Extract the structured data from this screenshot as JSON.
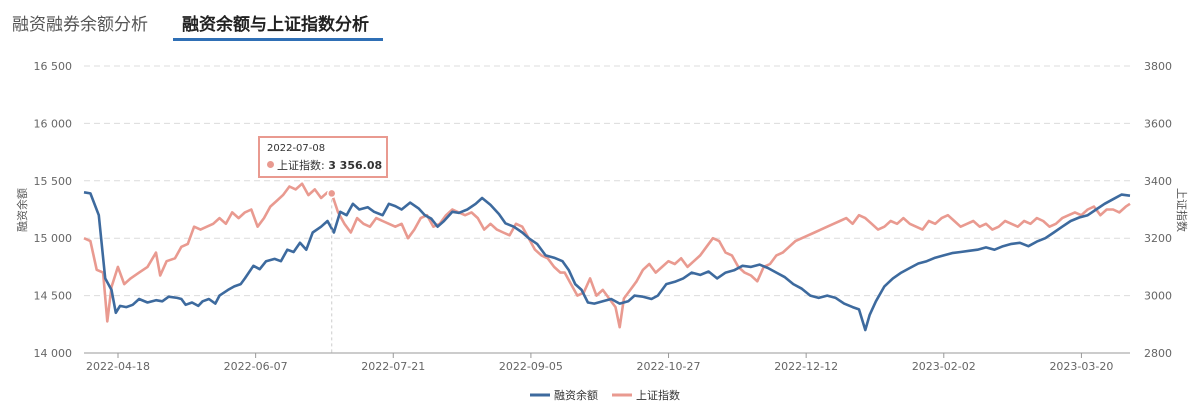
{
  "tabs": [
    {
      "label": "融资融券余额分析"
    },
    {
      "label": "融资余额与上证指数分析"
    }
  ],
  "chart_data": {
    "type": "line",
    "x_ticks": [
      "2022-04-18",
      "2022-06-07",
      "2022-07-21",
      "2022-09-05",
      "2022-10-27",
      "2022-12-12",
      "2023-02-02",
      "2023-03-20"
    ],
    "y_left": {
      "label": "融资余额",
      "ticks": [
        "14 000",
        "14 500",
        "15 000",
        "15 500",
        "16 000",
        "16 500"
      ],
      "range": [
        14000,
        16500
      ]
    },
    "y_right": {
      "label": "上证指数",
      "ticks": [
        "2800",
        "3000",
        "3200",
        "3400",
        "3600",
        "3800"
      ],
      "range": [
        2800,
        3800
      ]
    },
    "grid": true,
    "legend_position": "bottom-center",
    "series": [
      {
        "name": "融资余额",
        "axis": "left",
        "color": "#3d6a9e",
        "points": [
          [
            0,
            15400
          ],
          [
            3,
            15390
          ],
          [
            7,
            15200
          ],
          [
            10,
            14650
          ],
          [
            13,
            14550
          ],
          [
            15,
            14350
          ],
          [
            17,
            14410
          ],
          [
            20,
            14400
          ],
          [
            23,
            14420
          ],
          [
            26,
            14470
          ],
          [
            30,
            14440
          ],
          [
            34,
            14460
          ],
          [
            37,
            14450
          ],
          [
            40,
            14490
          ],
          [
            44,
            14480
          ],
          [
            46,
            14470
          ],
          [
            48,
            14420
          ],
          [
            51,
            14440
          ],
          [
            54,
            14410
          ],
          [
            56,
            14450
          ],
          [
            59,
            14470
          ],
          [
            62,
            14430
          ],
          [
            64,
            14500
          ],
          [
            68,
            14550
          ],
          [
            71,
            14580
          ],
          [
            74,
            14600
          ],
          [
            76,
            14650
          ],
          [
            80,
            14760
          ],
          [
            83,
            14730
          ],
          [
            86,
            14800
          ],
          [
            90,
            14820
          ],
          [
            93,
            14800
          ],
          [
            96,
            14900
          ],
          [
            99,
            14880
          ],
          [
            102,
            14960
          ],
          [
            105,
            14900
          ],
          [
            108,
            15050
          ],
          [
            112,
            15100
          ],
          [
            115,
            15150
          ],
          [
            118,
            15050
          ],
          [
            121,
            15230
          ],
          [
            124,
            15200
          ],
          [
            127,
            15300
          ],
          [
            130,
            15250
          ],
          [
            134,
            15270
          ],
          [
            137,
            15230
          ],
          [
            141,
            15200
          ],
          [
            144,
            15300
          ],
          [
            147,
            15280
          ],
          [
            150,
            15250
          ],
          [
            154,
            15310
          ],
          [
            158,
            15260
          ],
          [
            161,
            15200
          ],
          [
            164,
            15170
          ],
          [
            167,
            15100
          ],
          [
            170,
            15150
          ],
          [
            174,
            15230
          ],
          [
            177,
            15220
          ],
          [
            181,
            15250
          ],
          [
            185,
            15300
          ],
          [
            188,
            15350
          ],
          [
            192,
            15290
          ],
          [
            196,
            15210
          ],
          [
            199,
            15130
          ],
          [
            203,
            15100
          ],
          [
            207,
            15050
          ],
          [
            210,
            15000
          ],
          [
            214,
            14950
          ],
          [
            218,
            14850
          ],
          [
            222,
            14830
          ],
          [
            226,
            14800
          ],
          [
            229,
            14720
          ],
          [
            232,
            14600
          ],
          [
            235,
            14550
          ],
          [
            238,
            14440
          ],
          [
            241,
            14430
          ],
          [
            245,
            14450
          ],
          [
            249,
            14470
          ],
          [
            253,
            14430
          ],
          [
            257,
            14450
          ],
          [
            260,
            14500
          ],
          [
            264,
            14490
          ],
          [
            268,
            14470
          ],
          [
            271,
            14500
          ],
          [
            275,
            14600
          ],
          [
            279,
            14620
          ],
          [
            283,
            14650
          ],
          [
            287,
            14700
          ],
          [
            291,
            14680
          ],
          [
            295,
            14710
          ],
          [
            299,
            14650
          ],
          [
            303,
            14700
          ],
          [
            307,
            14720
          ],
          [
            311,
            14760
          ],
          [
            315,
            14750
          ],
          [
            319,
            14770
          ],
          [
            323,
            14740
          ],
          [
            327,
            14700
          ],
          [
            331,
            14660
          ],
          [
            335,
            14600
          ],
          [
            339,
            14560
          ],
          [
            343,
            14500
          ],
          [
            347,
            14480
          ],
          [
            351,
            14500
          ],
          [
            355,
            14480
          ],
          [
            359,
            14430
          ],
          [
            363,
            14400
          ],
          [
            366,
            14380
          ],
          [
            369,
            14200
          ],
          [
            371,
            14330
          ],
          [
            374,
            14450
          ],
          [
            378,
            14580
          ],
          [
            382,
            14650
          ],
          [
            386,
            14700
          ],
          [
            390,
            14740
          ],
          [
            394,
            14780
          ],
          [
            398,
            14800
          ],
          [
            402,
            14830
          ],
          [
            406,
            14850
          ],
          [
            410,
            14870
          ],
          [
            414,
            14880
          ],
          [
            418,
            14890
          ],
          [
            422,
            14900
          ],
          [
            426,
            14920
          ],
          [
            430,
            14900
          ],
          [
            434,
            14930
          ],
          [
            438,
            14950
          ],
          [
            442,
            14960
          ],
          [
            446,
            14930
          ],
          [
            450,
            14970
          ],
          [
            454,
            15000
          ],
          [
            458,
            15050
          ],
          [
            462,
            15100
          ],
          [
            466,
            15150
          ],
          [
            470,
            15180
          ],
          [
            474,
            15200
          ],
          [
            478,
            15250
          ],
          [
            482,
            15300
          ],
          [
            486,
            15340
          ],
          [
            490,
            15380
          ],
          [
            494,
            15370
          ]
        ]
      },
      {
        "name": "上证指数",
        "axis": "right",
        "color": "#e99a90",
        "points": [
          [
            0,
            3200
          ],
          [
            3,
            3190
          ],
          [
            6,
            3090
          ],
          [
            9,
            3080
          ],
          [
            11,
            2910
          ],
          [
            13,
            3030
          ],
          [
            16,
            3100
          ],
          [
            19,
            3040
          ],
          [
            22,
            3060
          ],
          [
            26,
            3080
          ],
          [
            30,
            3100
          ],
          [
            34,
            3150
          ],
          [
            36,
            3070
          ],
          [
            39,
            3120
          ],
          [
            43,
            3130
          ],
          [
            46,
            3170
          ],
          [
            49,
            3180
          ],
          [
            52,
            3240
          ],
          [
            55,
            3230
          ],
          [
            58,
            3240
          ],
          [
            61,
            3250
          ],
          [
            64,
            3270
          ],
          [
            67,
            3250
          ],
          [
            70,
            3290
          ],
          [
            73,
            3270
          ],
          [
            76,
            3290
          ],
          [
            79,
            3300
          ],
          [
            82,
            3240
          ],
          [
            85,
            3270
          ],
          [
            88,
            3310
          ],
          [
            91,
            3330
          ],
          [
            94,
            3350
          ],
          [
            97,
            3380
          ],
          [
            100,
            3370
          ],
          [
            103,
            3390
          ],
          [
            106,
            3350
          ],
          [
            109,
            3370
          ],
          [
            112,
            3340
          ],
          [
            115,
            3360
          ],
          [
            117,
            3356
          ],
          [
            120,
            3290
          ],
          [
            123,
            3250
          ],
          [
            126,
            3220
          ],
          [
            129,
            3270
          ],
          [
            132,
            3250
          ],
          [
            135,
            3240
          ],
          [
            138,
            3270
          ],
          [
            141,
            3260
          ],
          [
            144,
            3250
          ],
          [
            147,
            3240
          ],
          [
            150,
            3250
          ],
          [
            153,
            3200
          ],
          [
            156,
            3230
          ],
          [
            159,
            3270
          ],
          [
            162,
            3280
          ],
          [
            165,
            3240
          ],
          [
            168,
            3250
          ],
          [
            171,
            3280
          ],
          [
            174,
            3300
          ],
          [
            177,
            3290
          ],
          [
            180,
            3280
          ],
          [
            183,
            3290
          ],
          [
            186,
            3270
          ],
          [
            189,
            3230
          ],
          [
            192,
            3250
          ],
          [
            195,
            3230
          ],
          [
            198,
            3220
          ],
          [
            201,
            3210
          ],
          [
            204,
            3250
          ],
          [
            207,
            3240
          ],
          [
            210,
            3200
          ],
          [
            213,
            3160
          ],
          [
            216,
            3140
          ],
          [
            219,
            3130
          ],
          [
            222,
            3100
          ],
          [
            225,
            3080
          ],
          [
            227,
            3080
          ],
          [
            230,
            3040
          ],
          [
            233,
            3000
          ],
          [
            236,
            3010
          ],
          [
            239,
            3060
          ],
          [
            242,
            3000
          ],
          [
            245,
            3020
          ],
          [
            248,
            2990
          ],
          [
            251,
            2960
          ],
          [
            253,
            2890
          ],
          [
            255,
            2990
          ],
          [
            258,
            3020
          ],
          [
            261,
            3050
          ],
          [
            264,
            3090
          ],
          [
            267,
            3110
          ],
          [
            270,
            3080
          ],
          [
            273,
            3100
          ],
          [
            276,
            3120
          ],
          [
            279,
            3110
          ],
          [
            282,
            3130
          ],
          [
            285,
            3100
          ],
          [
            288,
            3120
          ],
          [
            291,
            3140
          ],
          [
            294,
            3170
          ],
          [
            297,
            3200
          ],
          [
            300,
            3190
          ],
          [
            303,
            3150
          ],
          [
            306,
            3140
          ],
          [
            309,
            3100
          ],
          [
            312,
            3080
          ],
          [
            315,
            3070
          ],
          [
            318,
            3050
          ],
          [
            321,
            3100
          ],
          [
            324,
            3110
          ],
          [
            327,
            3140
          ],
          [
            330,
            3150
          ],
          [
            333,
            3170
          ],
          [
            336,
            3190
          ],
          [
            339,
            3200
          ],
          [
            342,
            3210
          ],
          [
            345,
            3220
          ],
          [
            348,
            3230
          ],
          [
            351,
            3240
          ],
          [
            354,
            3250
          ],
          [
            357,
            3260
          ],
          [
            360,
            3270
          ],
          [
            363,
            3250
          ],
          [
            366,
            3280
          ],
          [
            369,
            3270
          ],
          [
            372,
            3250
          ],
          [
            375,
            3230
          ],
          [
            378,
            3240
          ],
          [
            381,
            3260
          ],
          [
            384,
            3250
          ],
          [
            387,
            3270
          ],
          [
            390,
            3250
          ],
          [
            393,
            3240
          ],
          [
            396,
            3230
          ],
          [
            399,
            3260
          ],
          [
            402,
            3250
          ],
          [
            405,
            3270
          ],
          [
            408,
            3280
          ],
          [
            411,
            3260
          ],
          [
            414,
            3240
          ],
          [
            417,
            3250
          ],
          [
            420,
            3260
          ],
          [
            423,
            3240
          ],
          [
            426,
            3250
          ],
          [
            429,
            3230
          ],
          [
            432,
            3240
          ],
          [
            435,
            3260
          ],
          [
            438,
            3250
          ],
          [
            441,
            3240
          ],
          [
            444,
            3260
          ],
          [
            447,
            3250
          ],
          [
            450,
            3270
          ],
          [
            453,
            3260
          ],
          [
            456,
            3240
          ],
          [
            459,
            3250
          ],
          [
            462,
            3270
          ],
          [
            465,
            3280
          ],
          [
            468,
            3290
          ],
          [
            471,
            3280
          ],
          [
            474,
            3300
          ],
          [
            477,
            3310
          ],
          [
            480,
            3280
          ],
          [
            483,
            3300
          ],
          [
            486,
            3300
          ],
          [
            489,
            3290
          ],
          [
            492,
            3310
          ],
          [
            494,
            3320
          ]
        ]
      }
    ],
    "tooltip": {
      "date": "2022-07-08",
      "series": "上证指数",
      "value": "3 356.08",
      "x": 117
    }
  }
}
